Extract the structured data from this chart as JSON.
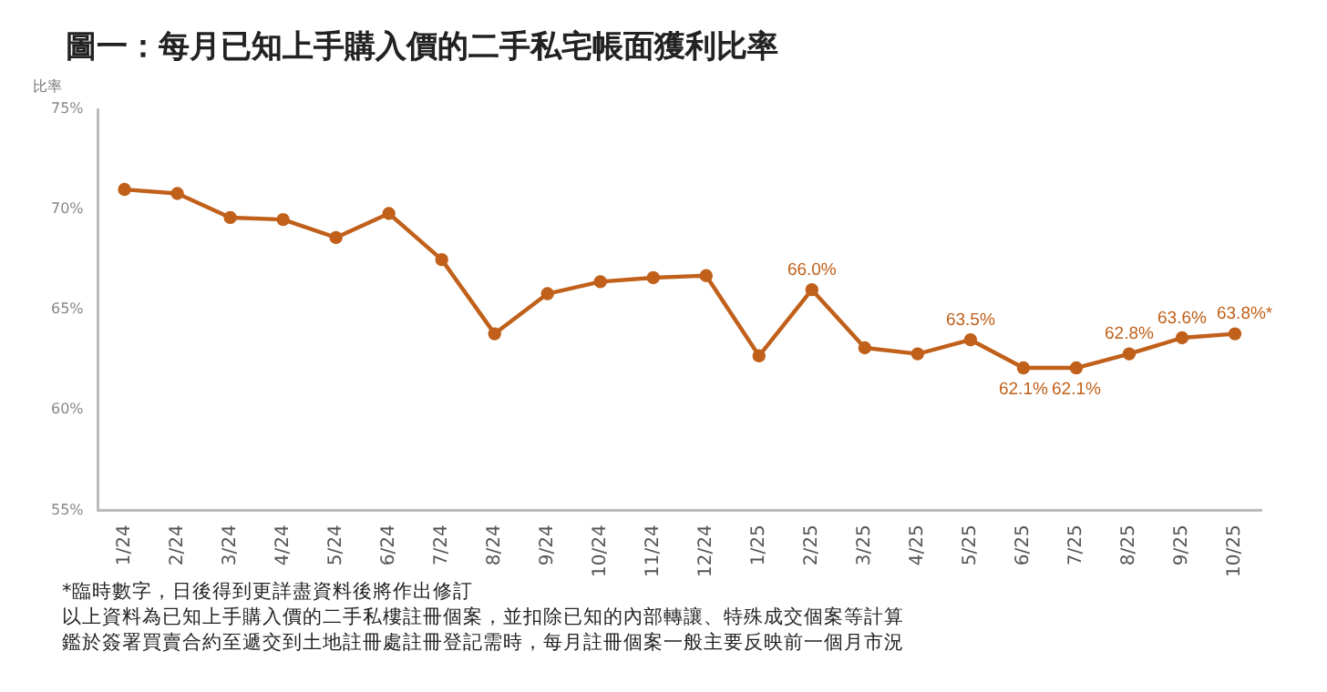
{
  "chart_data": {
    "type": "line",
    "title": "圖一：每月已知上手購入價的二手私宅帳面獲利比率",
    "ylabel": "比率",
    "categories": [
      "1/24",
      "2/24",
      "3/24",
      "4/24",
      "5/24",
      "6/24",
      "7/24",
      "8/24",
      "9/24",
      "10/24",
      "11/24",
      "12/24",
      "1/25",
      "2/25",
      "3/25",
      "4/25",
      "5/25",
      "6/25",
      "7/25",
      "8/25",
      "9/25",
      "10/25"
    ],
    "series": [
      {
        "color": "#c0601a",
        "values": [
          71.0,
          70.8,
          69.6,
          69.5,
          68.6,
          69.8,
          67.5,
          63.8,
          65.8,
          66.4,
          66.6,
          66.7,
          62.7,
          66.0,
          63.1,
          62.8,
          63.5,
          62.1,
          62.1,
          62.8,
          63.6,
          63.8
        ],
        "value_labels": [
          null,
          null,
          null,
          null,
          null,
          null,
          null,
          null,
          null,
          null,
          null,
          null,
          null,
          "66.0%",
          null,
          null,
          "63.5%",
          "62.1%",
          "62.1%",
          "62.8%",
          "63.6%",
          "63.8%*"
        ]
      }
    ],
    "ylim": [
      55,
      75
    ],
    "yticks": [
      {
        "value": 55,
        "label": "55%"
      },
      {
        "value": 60,
        "label": "60%"
      },
      {
        "value": 65,
        "label": "65%"
      },
      {
        "value": 70,
        "label": "70%"
      },
      {
        "value": 75,
        "label": "75%"
      }
    ],
    "grid": false,
    "legend": false,
    "marker": "circle",
    "line_style": "solid",
    "annotations": [
      "*臨時數字，日後得到更詳盡資料後將作出修訂",
      "以上資料為已知上手購入價的二手私樓註冊個案，並扣除已知的內部轉讓、特殊成交個案等計算",
      "鑑於簽署買賣合約至遞交到土地註冊處註冊登記需時，每月註冊個案一般主要反映前一個月市況"
    ]
  }
}
